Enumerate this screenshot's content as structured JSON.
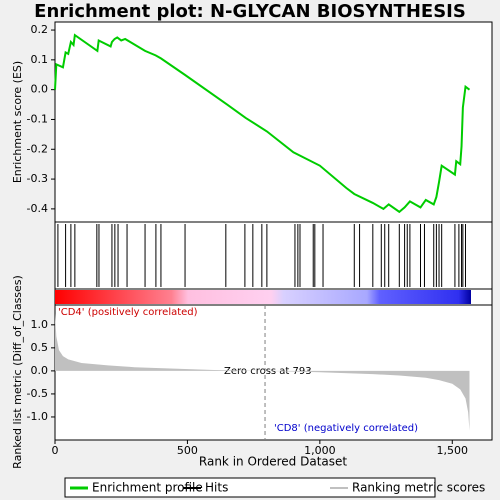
{
  "chart_data": [
    {
      "type": "line",
      "title": "Enrichment plot: N-GLYCAN BIOSYNTHESIS",
      "ylabel": "Enrichment score (ES)",
      "x": [
        0,
        5,
        30,
        40,
        50,
        60,
        70,
        75,
        160,
        165,
        210,
        215,
        225,
        235,
        250,
        265,
        340,
        380,
        400,
        490,
        650,
        720,
        800,
        900,
        1000,
        1100,
        1130,
        1200,
        1240,
        1260,
        1300,
        1320,
        1340,
        1380,
        1400,
        1430,
        1440,
        1450,
        1460,
        1510,
        1515,
        1530,
        1535,
        1540,
        1550,
        1565
      ],
      "series": [
        {
          "name": "Enrichment profile",
          "color": "#00cc00",
          "values": [
            0,
            0.085,
            0.075,
            0.125,
            0.12,
            0.16,
            0.15,
            0.183,
            0.13,
            0.165,
            0.145,
            0.16,
            0.17,
            0.175,
            0.165,
            0.17,
            0.13,
            0.115,
            0.105,
            0.05,
            -0.05,
            -0.095,
            -0.14,
            -0.21,
            -0.255,
            -0.33,
            -0.35,
            -0.38,
            -0.4,
            -0.385,
            -0.41,
            -0.395,
            -0.375,
            -0.395,
            -0.37,
            -0.385,
            -0.36,
            -0.31,
            -0.255,
            -0.285,
            -0.24,
            -0.25,
            -0.19,
            -0.06,
            0.01,
            0
          ]
        }
      ],
      "xlim": [
        0,
        1650
      ],
      "ylim": [
        -0.444,
        0.227
      ],
      "yticks": [
        0.2,
        0.1,
        {
          "value": 0,
          "label": "0.0"
        },
        -0.1,
        -0.2,
        -0.3,
        -0.4
      ]
    },
    {
      "type": "rug",
      "xlim": [
        0,
        1650
      ],
      "series": [
        {
          "name": "Hits",
          "color": "#000000",
          "x": [
            11,
            40,
            60,
            75,
            158,
            166,
            215,
            226,
            238,
            272,
            340,
            381,
            400,
            491,
            645,
            717,
            747,
            781,
            800,
            906,
            917,
            925,
            975,
            981,
            1012,
            1130,
            1150,
            1200,
            1232,
            1245,
            1260,
            1300,
            1320,
            1330,
            1340,
            1380,
            1395,
            1430,
            1440,
            1450,
            1460,
            1510,
            1525,
            1535,
            1540,
            1550
          ]
        }
      ]
    },
    {
      "type": "area",
      "xlabel": "Rank in Ordered Dataset",
      "ylabel": "Ranked list metric (Diff_of_Classes)",
      "x": [
        0,
        5,
        15,
        30,
        50,
        100,
        200,
        300,
        450,
        600,
        793,
        1000,
        1200,
        1300,
        1400,
        1450,
        1500,
        1530,
        1550,
        1560,
        1565
      ],
      "series": [
        {
          "name": "Ranking metric scores",
          "color": "#c0c0c0",
          "values": [
            1.25,
            0.75,
            0.45,
            0.32,
            0.25,
            0.17,
            0.12,
            0.08,
            0.05,
            0.02,
            0,
            -0.03,
            -0.07,
            -0.1,
            -0.15,
            -0.2,
            -0.28,
            -0.4,
            -0.6,
            -0.9,
            -1.3
          ]
        }
      ],
      "xlim": [
        0,
        1650
      ],
      "ylim": [
        -1.5,
        1.43
      ],
      "xticks": [
        0,
        500,
        {
          "value": 1000,
          "label": "1,000"
        },
        {
          "value": 1500,
          "label": "1,500"
        }
      ],
      "yticks": [
        {
          "value": 1,
          "label": "1.0"
        },
        0.5,
        {
          "value": 0,
          "label": "0.0"
        },
        -0.5,
        {
          "value": -1,
          "label": "-1.0"
        }
      ],
      "zero_cross": 793,
      "zero_cross_label": "Zero cross at 793",
      "pos_label": "'CD4' (positively correlated)",
      "neg_label": "'CD8' (negatively correlated)"
    }
  ]
}
